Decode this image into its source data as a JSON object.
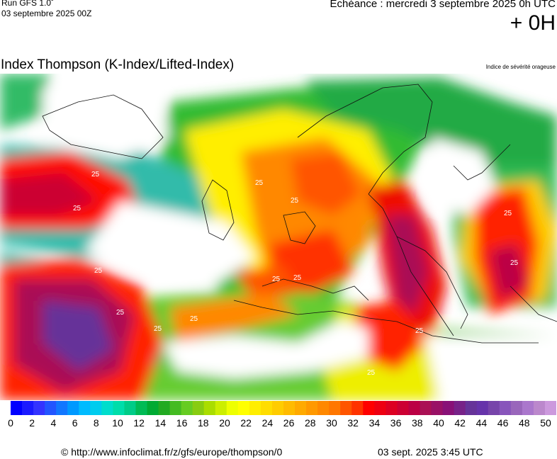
{
  "header": {
    "run_label": "Run GFS 1.0˚",
    "run_date": "03 septembre 2025 00Z",
    "echeance": "Echéance : mercredi 3 septembre 2025 0h UTC",
    "lead": "+ 0H"
  },
  "map": {
    "title": "Index Thompson (K-Index/Lifted-Index)",
    "subtitle": "Indice de sévérité orageuse",
    "contour_labels": [
      {
        "text": "25"
      },
      {
        "text": "25"
      },
      {
        "text": "25"
      },
      {
        "text": "25"
      },
      {
        "text": "25"
      },
      {
        "text": "25"
      },
      {
        "text": "25"
      },
      {
        "text": "25"
      },
      {
        "text": "25"
      },
      {
        "text": "25"
      },
      {
        "text": "25"
      },
      {
        "text": "25"
      },
      {
        "text": "25"
      },
      {
        "text": "25"
      }
    ]
  },
  "scale": {
    "colors": [
      "#0000ff",
      "#1a1aff",
      "#3333ff",
      "#2255ff",
      "#1177ff",
      "#0099ff",
      "#00bbff",
      "#00ccee",
      "#00ddcc",
      "#00ddaa",
      "#00cc88",
      "#00bb55",
      "#00aa33",
      "#22aa22",
      "#44bb22",
      "#66cc22",
      "#88cc11",
      "#aadd00",
      "#ccee00",
      "#eeff00",
      "#ffff00",
      "#ffee00",
      "#ffdd00",
      "#ffcc00",
      "#ffbb00",
      "#ffaa00",
      "#ff9900",
      "#ff8800",
      "#ff7700",
      "#ff5500",
      "#ff3300",
      "#ff0000",
      "#ee0011",
      "#dd0022",
      "#cc0033",
      "#bb0044",
      "#aa1155",
      "#991166",
      "#881177",
      "#772288",
      "#663399",
      "#6633aa",
      "#7744aa",
      "#8855bb",
      "#9966bb",
      "#aa77cc",
      "#bb88cc",
      "#cc99dd"
    ],
    "tick_labels": [
      "0",
      "2",
      "4",
      "6",
      "8",
      "10",
      "12",
      "14",
      "16",
      "18",
      "20",
      "22",
      "24",
      "26",
      "28",
      "30",
      "32",
      "34",
      "36",
      "38",
      "40",
      "42",
      "44",
      "46",
      "48",
      "50"
    ]
  },
  "footer": {
    "url": "© http://www.infoclimat.fr/z/gfs/europe/thompson/0",
    "timestamp": "03 sept. 2025  3:45 UTC"
  }
}
